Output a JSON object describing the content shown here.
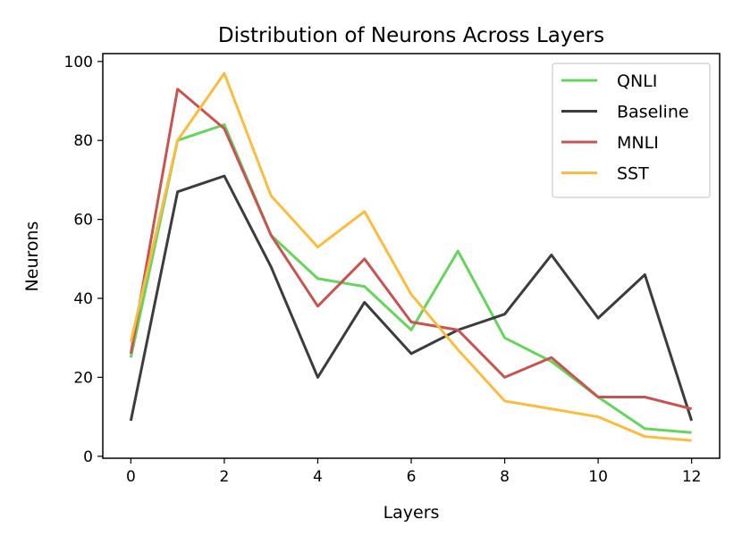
{
  "chart_data": {
    "type": "line",
    "title": "Distribution of Neurons Across Layers",
    "xlabel": "Layers",
    "ylabel": "Neurons",
    "xlim": [
      -0.6,
      12.6
    ],
    "ylim": [
      -0.5,
      102
    ],
    "xticks": [
      0,
      2,
      4,
      6,
      8,
      10,
      12
    ],
    "yticks": [
      0,
      20,
      40,
      60,
      80,
      100
    ],
    "legend_position": "top-right",
    "grid": false,
    "x": [
      0,
      1,
      2,
      3,
      4,
      5,
      6,
      7,
      8,
      9,
      10,
      11,
      12
    ],
    "series": [
      {
        "name": "QNLI",
        "color": "#66d45f",
        "values": [
          25,
          80,
          84,
          56,
          45,
          43,
          32,
          52,
          30,
          24,
          15,
          7,
          6
        ]
      },
      {
        "name": "Baseline",
        "color": "#3c3c3c",
        "values": [
          9,
          67,
          71,
          48,
          20,
          39,
          26,
          32,
          36,
          51,
          35,
          46,
          9
        ]
      },
      {
        "name": "MNLI",
        "color": "#c55552",
        "values": [
          26,
          93,
          83,
          56,
          38,
          50,
          34,
          32,
          20,
          25,
          15,
          15,
          12
        ]
      },
      {
        "name": "SST",
        "color": "#fbbc42",
        "values": [
          29,
          80,
          97,
          66,
          53,
          62,
          41,
          27,
          14,
          12,
          10,
          5,
          4
        ]
      }
    ]
  }
}
